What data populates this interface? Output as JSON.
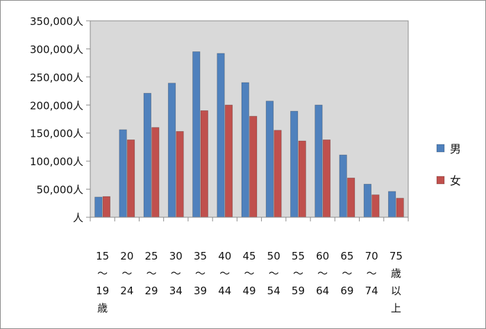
{
  "chart_data": {
    "type": "bar",
    "title": "",
    "xlabel": "",
    "ylabel": "",
    "ylim": [
      0,
      350000
    ],
    "grid": false,
    "legend_position": "right",
    "y_tick_labels": [
      "人",
      "50,000人",
      "100,000人",
      "150,000人",
      "200,000人",
      "250,000人",
      "300,000人",
      "350,000人"
    ],
    "y_tick_values": [
      0,
      50000,
      100000,
      150000,
      200000,
      250000,
      300000,
      350000
    ],
    "categories": [
      [
        "15",
        "〜",
        "19",
        "歳"
      ],
      [
        "20",
        "〜",
        "24"
      ],
      [
        "25",
        "〜",
        "29"
      ],
      [
        "30",
        "〜",
        "34"
      ],
      [
        "35",
        "〜",
        "39"
      ],
      [
        "40",
        "〜",
        "44"
      ],
      [
        "45",
        "〜",
        "49"
      ],
      [
        "50",
        "〜",
        "54"
      ],
      [
        "55",
        "〜",
        "59"
      ],
      [
        "60",
        "〜",
        "64"
      ],
      [
        "65",
        "〜",
        "69"
      ],
      [
        "70",
        "〜",
        "74"
      ],
      [
        "75",
        "歳",
        "以",
        "上"
      ]
    ],
    "series": [
      {
        "name": "男",
        "color": "#4f81bd",
        "values": [
          36000,
          156000,
          221000,
          239000,
          295000,
          292000,
          240000,
          207000,
          189000,
          200000,
          111000,
          59000,
          46000
        ]
      },
      {
        "name": "女",
        "color": "#c0504d",
        "values": [
          37000,
          138000,
          160000,
          153000,
          190000,
          200000,
          180000,
          155000,
          136000,
          138000,
          70000,
          40000,
          34000
        ]
      }
    ]
  }
}
